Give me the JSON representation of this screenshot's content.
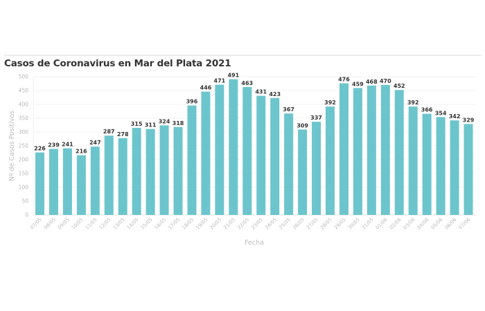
{
  "chart_data": {
    "type": "bar",
    "title": "Casos de Coronavirus en Mar del Plata 2021",
    "xlabel": "Fecha",
    "ylabel": "Nº de Casos Positivos",
    "ylim": [
      0,
      500
    ],
    "yticks": [
      0,
      50,
      100,
      150,
      200,
      250,
      300,
      350,
      400,
      450,
      500
    ],
    "grid": true,
    "bar_color": "#6cc5cc",
    "categories": [
      "07/05",
      "08/05",
      "09/05",
      "10/05",
      "11/05",
      "12/05",
      "13/05",
      "14/05",
      "15/05",
      "16/05",
      "17/05",
      "18/05",
      "19/05",
      "20/05",
      "21/05",
      "22/05",
      "23/05",
      "24/05",
      "25/05",
      "26/05",
      "27/05",
      "28/05",
      "29/05",
      "30/05",
      "31/05",
      "01/06",
      "02/06",
      "03/06",
      "04/06",
      "05/06",
      "06/06",
      "07/06"
    ],
    "values": [
      226,
      239,
      241,
      216,
      247,
      287,
      278,
      315,
      311,
      324,
      318,
      396,
      446,
      471,
      491,
      463,
      431,
      423,
      367,
      309,
      337,
      392,
      476,
      459,
      468,
      470,
      452,
      392,
      366,
      354,
      342,
      329
    ]
  }
}
